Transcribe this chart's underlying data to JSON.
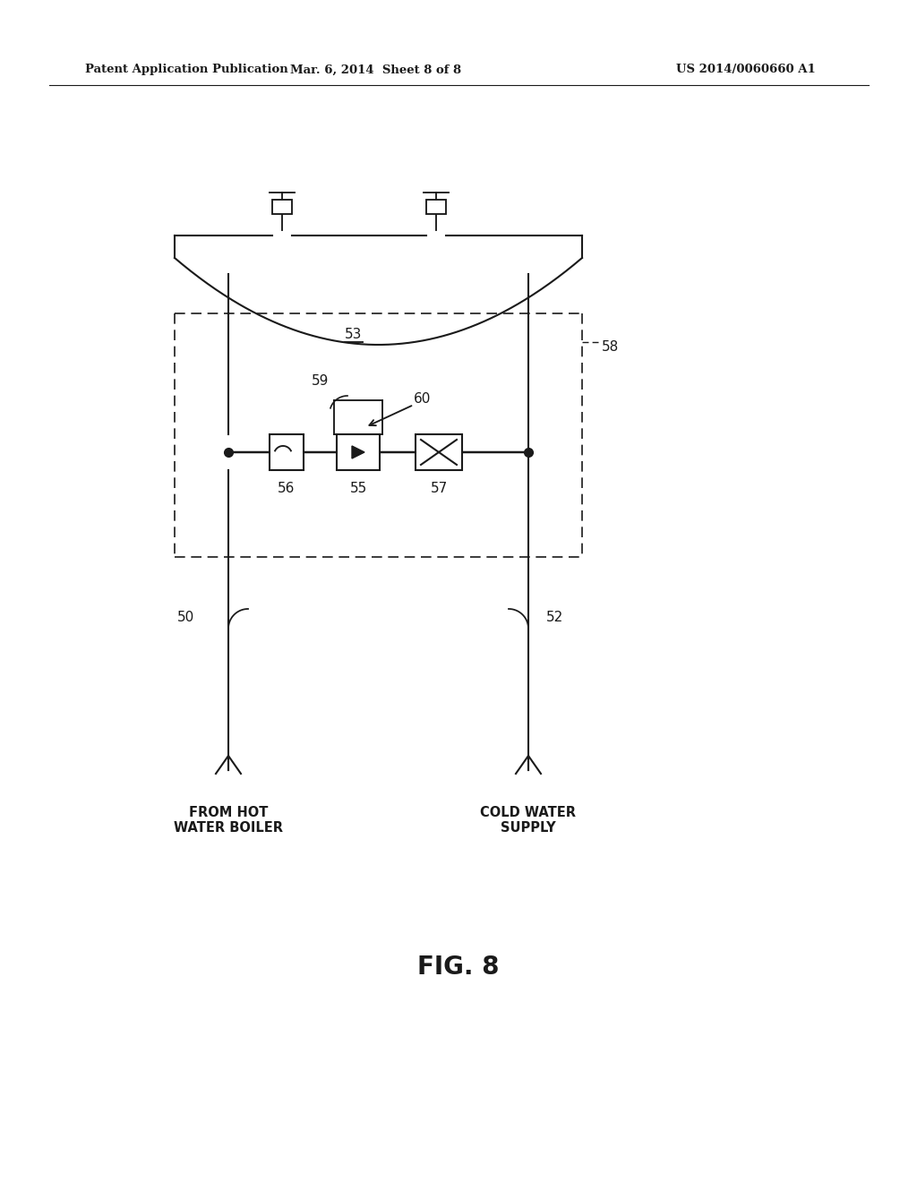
{
  "bg_color": "#ffffff",
  "line_color": "#1a1a1a",
  "header_left": "Patent Application Publication",
  "header_center": "Mar. 6, 2014  Sheet 8 of 8",
  "header_right": "US 2014/0060660 A1",
  "fig_label": "FIG. 8",
  "label_53": "53",
  "label_55": "55",
  "label_56": "56",
  "label_57": "57",
  "label_58": "58",
  "label_59": "59",
  "label_60": "60",
  "label_50": "50",
  "label_52": "52",
  "text_hot": "FROM HOT\nWATER BOILER",
  "text_cold": "COLD WATER\nSUPPLY"
}
